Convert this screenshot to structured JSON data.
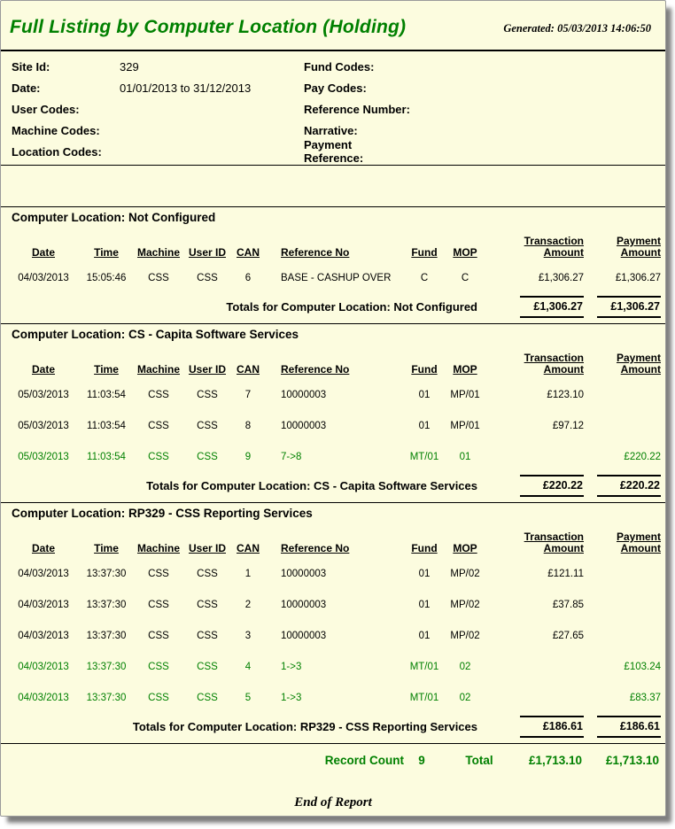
{
  "header": {
    "title": "Full Listing by Computer Location (Holding)",
    "generated_label": "Generated: 05/03/2013 14:06:50"
  },
  "filters": {
    "left": [
      {
        "label": "Site Id:",
        "value": "329"
      },
      {
        "label": "Date:",
        "value": "01/01/2013 to 31/12/2013"
      },
      {
        "label": "User Codes:",
        "value": ""
      },
      {
        "label": "Machine Codes:",
        "value": ""
      },
      {
        "label": "Location Codes:",
        "value": ""
      }
    ],
    "right": [
      {
        "label": "Fund Codes:",
        "value": ""
      },
      {
        "label": "Pay Codes:",
        "value": ""
      },
      {
        "label": "Reference Number:",
        "value": ""
      },
      {
        "label": "Narrative:",
        "value": ""
      },
      {
        "label": "Payment Reference:",
        "value": ""
      }
    ]
  },
  "columns": [
    {
      "label": "Date"
    },
    {
      "label": "Time"
    },
    {
      "label": "Machine"
    },
    {
      "label": "User ID"
    },
    {
      "label": "CAN"
    },
    {
      "label": "Reference No"
    },
    {
      "label": "Fund"
    },
    {
      "label": "MOP"
    },
    {
      "label": "Transaction",
      "label2": "Amount"
    },
    {
      "label": "Payment",
      "label2": "Amount"
    }
  ],
  "sections": [
    {
      "header": "Computer Location: Not Configured",
      "rows": [
        {
          "date": "04/03/2013",
          "time": "15:05:46",
          "machine": "CSS",
          "user_id": "CSS",
          "can": "6",
          "reference_no": "BASE - CASHUP OVER",
          "fund": "C",
          "mop": "C",
          "transaction_amount": "£1,306.27",
          "payment_amount": "£1,306.27",
          "highlight": false
        }
      ],
      "totals_label": "Totals for Computer Location: Not Configured",
      "totals_transaction": "£1,306.27",
      "totals_payment": "£1,306.27"
    },
    {
      "header": "Computer Location: CS - Capita Software Services",
      "rows": [
        {
          "date": "05/03/2013",
          "time": "11:03:54",
          "machine": "CSS",
          "user_id": "CSS",
          "can": "7",
          "reference_no": "10000003",
          "fund": "01",
          "mop": "MP/01",
          "transaction_amount": "£123.10",
          "payment_amount": "",
          "highlight": false
        },
        {
          "date": "05/03/2013",
          "time": "11:03:54",
          "machine": "CSS",
          "user_id": "CSS",
          "can": "8",
          "reference_no": "10000003",
          "fund": "01",
          "mop": "MP/01",
          "transaction_amount": "£97.12",
          "payment_amount": "",
          "highlight": false
        },
        {
          "date": "05/03/2013",
          "time": "11:03:54",
          "machine": "CSS",
          "user_id": "CSS",
          "can": "9",
          "reference_no": "7->8",
          "fund": "MT/01",
          "mop": "01",
          "transaction_amount": "",
          "payment_amount": "£220.22",
          "highlight": true
        }
      ],
      "totals_label": "Totals for Computer Location: CS - Capita Software Services",
      "totals_transaction": "£220.22",
      "totals_payment": "£220.22"
    },
    {
      "header": "Computer Location: RP329 - CSS Reporting Services",
      "rows": [
        {
          "date": "04/03/2013",
          "time": "13:37:30",
          "machine": "CSS",
          "user_id": "CSS",
          "can": "1",
          "reference_no": "10000003",
          "fund": "01",
          "mop": "MP/02",
          "transaction_amount": "£121.11",
          "payment_amount": "",
          "highlight": false
        },
        {
          "date": "04/03/2013",
          "time": "13:37:30",
          "machine": "CSS",
          "user_id": "CSS",
          "can": "2",
          "reference_no": "10000003",
          "fund": "01",
          "mop": "MP/02",
          "transaction_amount": "£37.85",
          "payment_amount": "",
          "highlight": false
        },
        {
          "date": "04/03/2013",
          "time": "13:37:30",
          "machine": "CSS",
          "user_id": "CSS",
          "can": "3",
          "reference_no": "10000003",
          "fund": "01",
          "mop": "MP/02",
          "transaction_amount": "£27.65",
          "payment_amount": "",
          "highlight": false
        },
        {
          "date": "04/03/2013",
          "time": "13:37:30",
          "machine": "CSS",
          "user_id": "CSS",
          "can": "4",
          "reference_no": "1->3",
          "fund": "MT/01",
          "mop": "02",
          "transaction_amount": "",
          "payment_amount": "£103.24",
          "highlight": true
        },
        {
          "date": "04/03/2013",
          "time": "13:37:30",
          "machine": "CSS",
          "user_id": "CSS",
          "can": "5",
          "reference_no": "1->3",
          "fund": "MT/01",
          "mop": "02",
          "transaction_amount": "",
          "payment_amount": "£83.37",
          "highlight": true
        }
      ],
      "totals_label": "Totals for Computer Location: RP329 - CSS Reporting Services",
      "totals_transaction": "£186.61",
      "totals_payment": "£186.61"
    }
  ],
  "summary": {
    "record_count_label": "Record Count",
    "record_count": "9",
    "total_label": "Total",
    "total_transaction": "£1,713.10",
    "total_payment": "£1,713.10"
  },
  "footer": {
    "end_of_report": "End of Report"
  },
  "theme": {
    "background": "#FCFCDF",
    "accent_green": "#008000",
    "text": "#000000",
    "rule": "#000000"
  }
}
